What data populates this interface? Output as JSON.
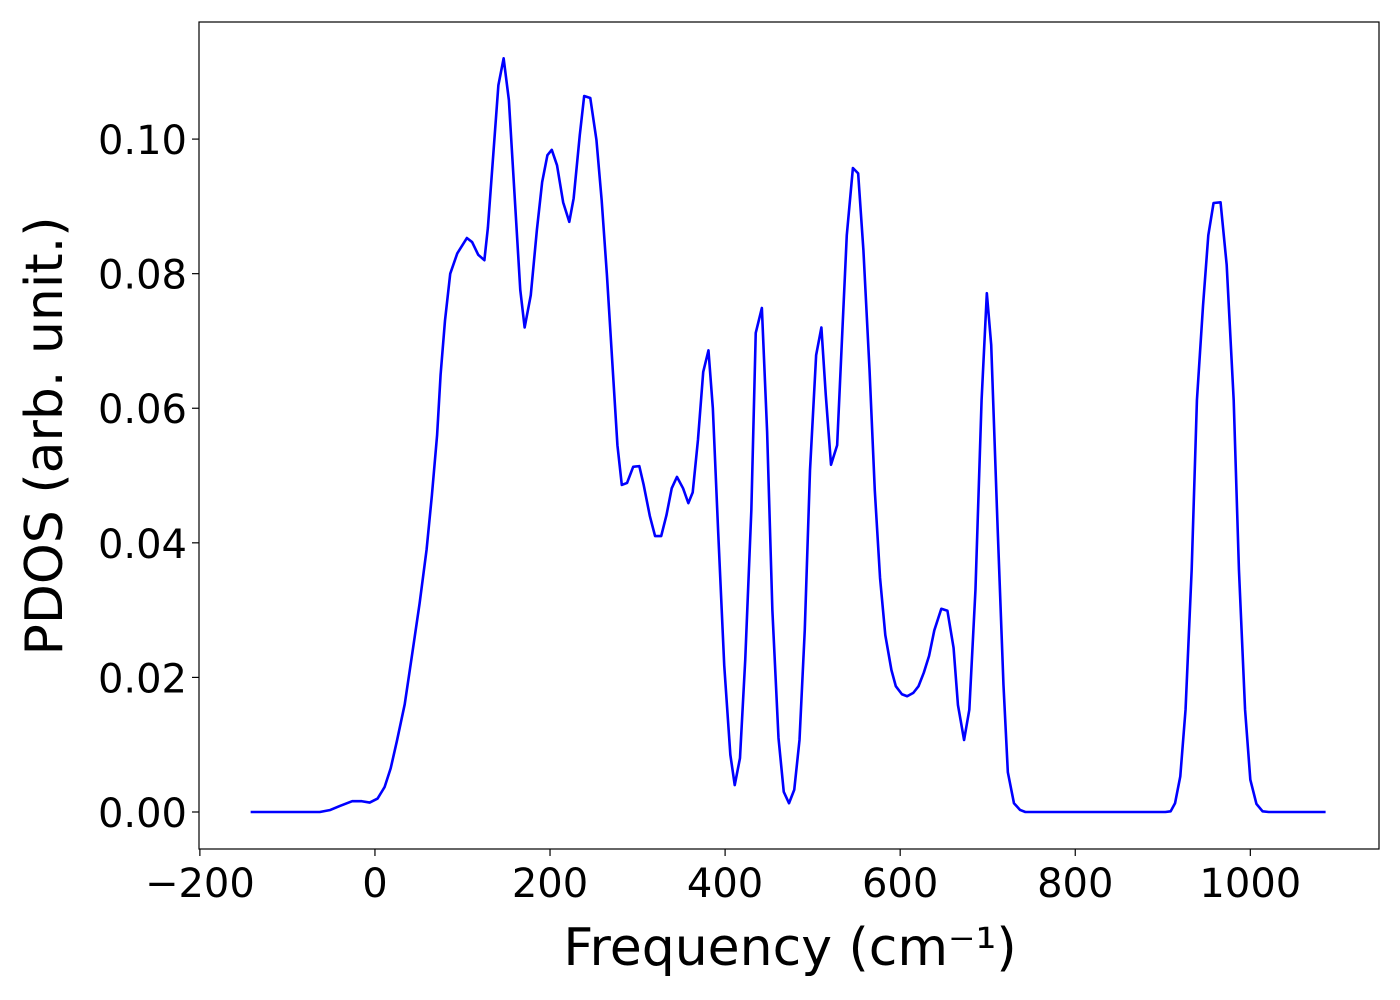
{
  "chart_data": {
    "type": "line",
    "xlabel": "Frequency (cm⁻¹)",
    "ylabel": "PDOS (arb. unit.)",
    "x": [
      -142,
      -63,
      -51,
      -40,
      -26,
      -15,
      -6,
      3,
      11,
      18,
      25,
      34,
      42,
      51,
      59,
      65,
      71,
      75,
      80,
      86,
      94,
      105,
      111,
      118,
      125,
      129,
      141,
      147,
      153,
      166,
      171,
      178,
      185,
      191,
      197,
      202,
      208,
      215,
      222,
      227,
      234,
      239,
      246,
      253,
      259,
      265,
      277,
      282,
      288,
      295,
      302,
      307,
      314,
      320,
      327,
      333,
      339,
      345,
      352,
      358,
      363,
      369,
      375,
      381,
      386,
      392,
      399,
      406,
      411,
      417,
      423,
      430,
      435,
      442,
      448,
      454,
      461,
      467,
      473,
      479,
      485,
      491,
      497,
      504,
      510,
      515,
      521,
      528,
      534,
      539,
      546,
      552,
      558,
      565,
      571,
      577,
      583,
      590,
      595,
      602,
      608,
      615,
      621,
      627,
      633,
      639,
      647,
      654,
      661,
      666,
      673,
      679,
      686,
      693,
      699,
      704,
      711,
      718,
      723,
      730,
      737,
      743,
      903,
      909,
      914,
      920,
      926,
      933,
      939,
      946,
      952,
      958,
      966,
      973,
      981,
      987,
      994,
      1000,
      1007,
      1014,
      1021,
      1086
    ],
    "series": [
      {
        "name": "PDOS",
        "color": "#0000ff",
        "values": [
          0,
          0,
          0.0003,
          0.0009,
          0.0016,
          0.0016,
          0.0014,
          0.002,
          0.0037,
          0.0065,
          0.0105,
          0.016,
          0.023,
          0.031,
          0.039,
          0.047,
          0.056,
          0.065,
          0.073,
          0.08,
          0.083,
          0.0853,
          0.0847,
          0.0828,
          0.082,
          0.0868,
          0.108,
          0.112,
          0.1058,
          0.0776,
          0.072,
          0.0768,
          0.0865,
          0.0936,
          0.0976,
          0.0984,
          0.0961,
          0.0906,
          0.0877,
          0.0912,
          0.1006,
          0.1064,
          0.1061,
          0.0999,
          0.0909,
          0.0798,
          0.0545,
          0.0486,
          0.0489,
          0.0513,
          0.0514,
          0.0486,
          0.044,
          0.041,
          0.041,
          0.0441,
          0.0481,
          0.0498,
          0.0481,
          0.0459,
          0.0475,
          0.0553,
          0.0654,
          0.0686,
          0.06,
          0.0419,
          0.0218,
          0.0085,
          0.004,
          0.008,
          0.0226,
          0.0449,
          0.0712,
          0.0749,
          0.0565,
          0.03,
          0.011,
          0.003,
          0.0013,
          0.0033,
          0.0107,
          0.027,
          0.0508,
          0.0679,
          0.072,
          0.062,
          0.0516,
          0.0545,
          0.0716,
          0.0857,
          0.0957,
          0.0949,
          0.0835,
          0.0657,
          0.0478,
          0.0348,
          0.0263,
          0.0211,
          0.0187,
          0.0175,
          0.0172,
          0.0177,
          0.0187,
          0.0207,
          0.0232,
          0.027,
          0.0302,
          0.0299,
          0.0244,
          0.0159,
          0.0107,
          0.0152,
          0.033,
          0.0612,
          0.0771,
          0.0694,
          0.0434,
          0.0189,
          0.0059,
          0.0013,
          0.0003,
          0,
          0,
          0.0001,
          0.0013,
          0.0053,
          0.0152,
          0.036,
          0.0612,
          0.0753,
          0.0857,
          0.0905,
          0.0906,
          0.0813,
          0.0612,
          0.036,
          0.0152,
          0.0048,
          0.0012,
          0.0001,
          0,
          0
        ]
      }
    ],
    "xlim": [
      -201,
      1147
    ],
    "ylim": [
      -0.0055,
      0.1174
    ],
    "xticks": [
      {
        "value": -200,
        "label": "−200"
      },
      0,
      200,
      400,
      600,
      800,
      1000
    ],
    "yticks": [
      {
        "value": 0,
        "label": "0.00"
      },
      {
        "value": 0.02,
        "label": "0.02"
      },
      {
        "value": 0.04,
        "label": "0.04"
      },
      {
        "value": 0.06,
        "label": "0.06"
      },
      {
        "value": 0.08,
        "label": "0.08"
      },
      {
        "value": 0.1,
        "label": "0.10"
      }
    ],
    "grid": false
  }
}
